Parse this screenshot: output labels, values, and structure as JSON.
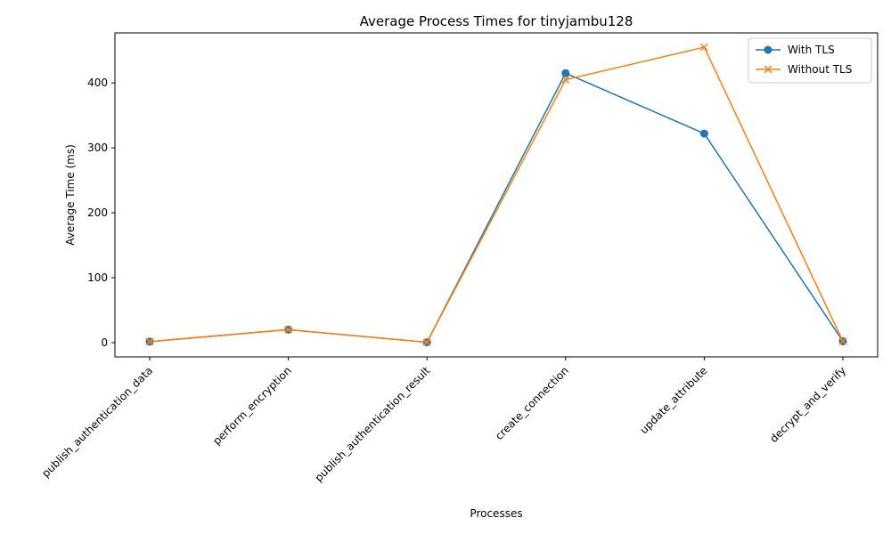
{
  "chart_data": {
    "type": "line",
    "title": "Average Process Times for tinyjambu128",
    "xlabel": "Processes",
    "ylabel": "Average Time (ms)",
    "categories": [
      "publish_authentication_data",
      "perform_encryption",
      "publish_authentication_result",
      "create_connection",
      "update_attribute",
      "decrypt_and_verify"
    ],
    "ylim": [
      -22,
      477
    ],
    "yticks": [
      0,
      100,
      200,
      300,
      400
    ],
    "grid": false,
    "legend_position": "top-right",
    "series": [
      {
        "name": "With TLS",
        "values": [
          1.5,
          20,
          0.5,
          415,
          322,
          2
        ],
        "color": "#1f77b4",
        "marker": "circle"
      },
      {
        "name": "Without TLS",
        "values": [
          1.5,
          20,
          0.5,
          405,
          455,
          2
        ],
        "color": "#ff7f0e",
        "marker": "x"
      }
    ]
  }
}
